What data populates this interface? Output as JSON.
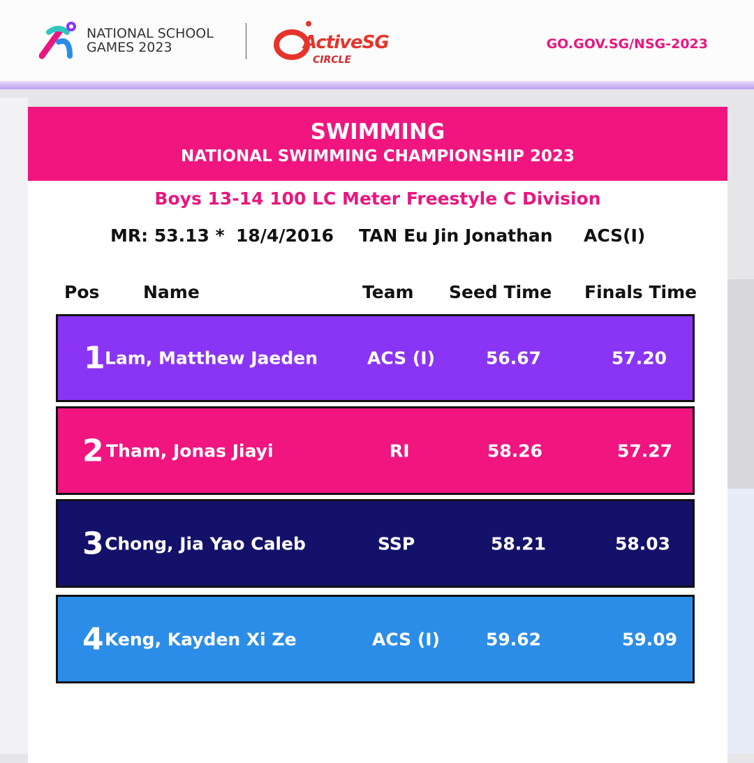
{
  "header": {
    "nsg_logo_text": [
      "NATIONAL SCHOOL",
      "GAMES 2023"
    ],
    "activesg_logo_text": [
      "ActiveSG",
      "CIRCLE"
    ],
    "url": "GO.GOV.SG/NSG-2023"
  },
  "banner": {
    "sport": "SWIMMING",
    "competition": "NATIONAL SWIMMING CHAMPIONSHIP 2023"
  },
  "event": "Boys 13-14 100 LC Meter Freestyle C Division",
  "meet_record": {
    "label": "MR: 53.13 *",
    "date": "18/4/2016",
    "holder": "TAN Eu Jin Jonathan",
    "team": "ACS(I)"
  },
  "columns": {
    "pos": "Pos",
    "name": "Name",
    "team": "Team",
    "seed": "Seed Time",
    "finals": "Finals Time"
  },
  "results": [
    {
      "pos": "1",
      "name": "Lam, Matthew Jaeden",
      "team": "ACS (I)",
      "seed": "56.67",
      "finals": "57.20",
      "color": "#8a35f5"
    },
    {
      "pos": "2",
      "name": "Tham, Jonas Jiayi",
      "team": "RI",
      "seed": "58.26",
      "finals": "57.27",
      "color": "#f0157f"
    },
    {
      "pos": "3",
      "name": "Chong, Jia Yao Caleb",
      "team": "SSP",
      "seed": "58.21",
      "finals": "58.03",
      "color": "#14116a"
    },
    {
      "pos": "4",
      "name": "Keng, Kayden Xi Ze",
      "team": "ACS (I)",
      "seed": "59.62",
      "finals": "59.09",
      "color": "#2b8de8"
    }
  ]
}
